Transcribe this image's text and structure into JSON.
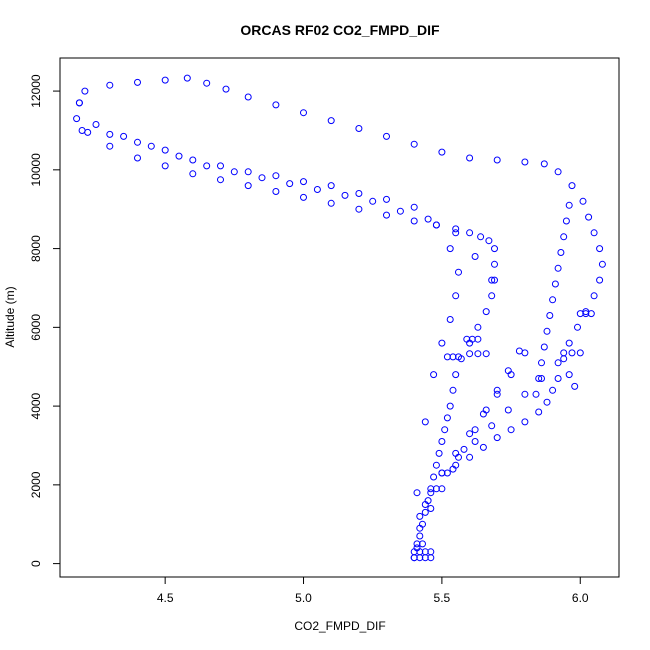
{
  "chart_data": {
    "type": "scatter",
    "title": "ORCAS RF02 CO2_FMPD_DIF",
    "xlabel": "CO2_FMPD_DIF",
    "ylabel": "Altitude (m)",
    "xlim": [
      4.12,
      6.14
    ],
    "ylim": [
      -340,
      12840
    ],
    "xticks": [
      4.5,
      5.0,
      5.5,
      6.0
    ],
    "xtick_labels": [
      "4.5",
      "5.0",
      "5.5",
      "6.0"
    ],
    "yticks": [
      0,
      2000,
      4000,
      6000,
      8000,
      10000,
      12000
    ],
    "ytick_labels": [
      "0",
      "2000",
      "4000",
      "6000",
      "8000",
      "10000",
      "12000"
    ],
    "marker": "open-circle",
    "color": "#0000ff",
    "grid": false,
    "series": [
      {
        "x": [
          5.4,
          5.41,
          5.42,
          5.43,
          5.44,
          5.45,
          5.46,
          5.47,
          5.48,
          5.49,
          5.5,
          5.51,
          5.52,
          5.53,
          5.54,
          5.55,
          5.57,
          5.6,
          5.63,
          5.66,
          5.68,
          5.69,
          5.69,
          5.69,
          5.67,
          5.64,
          5.6,
          5.55,
          5.48,
          5.4,
          5.3,
          5.2,
          5.1,
          5.0,
          4.9,
          4.8,
          4.7,
          4.6,
          4.5,
          4.4,
          4.3,
          4.22,
          4.18,
          4.19,
          4.21
        ],
        "y": [
          150,
          400,
          700,
          1000,
          1300,
          1600,
          1900,
          2200,
          2500,
          2800,
          3100,
          3400,
          3700,
          4000,
          4400,
          4800,
          5200,
          5600,
          6000,
          6400,
          6800,
          7200,
          7600,
          8000,
          8200,
          8300,
          8400,
          8500,
          8600,
          8700,
          8850,
          9000,
          9150,
          9300,
          9450,
          9600,
          9750,
          9900,
          10100,
          10300,
          10600,
          10950,
          11300,
          11700,
          12000
        ]
      },
      {
        "x": [
          4.19,
          4.25,
          4.35,
          4.45,
          4.55,
          4.65,
          4.75,
          4.85,
          4.95,
          5.05,
          5.15,
          5.25,
          5.35,
          5.45,
          5.55,
          5.62,
          5.68
        ],
        "y": [
          11700,
          11150,
          10850,
          10600,
          10350,
          10100,
          9950,
          9800,
          9650,
          9500,
          9350,
          9200,
          8950,
          8750,
          8400,
          7800,
          7200
        ]
      },
      {
        "x": [
          4.2,
          4.3,
          4.4,
          4.5,
          4.6,
          4.7,
          4.8,
          4.9,
          5.0,
          5.1,
          5.2,
          5.3,
          5.4,
          5.48,
          5.53,
          5.56,
          5.55,
          5.53,
          5.5,
          5.47,
          5.44,
          5.41
        ],
        "y": [
          11000,
          10900,
          10700,
          10500,
          10250,
          10100,
          9950,
          9850,
          9700,
          9600,
          9400,
          9250,
          9050,
          8600,
          8000,
          7400,
          6800,
          6200,
          5600,
          4800,
          3600,
          1800
        ]
      },
      {
        "x": [
          4.3,
          4.4,
          4.5,
          4.58,
          4.65,
          4.72,
          4.8,
          4.9,
          5.0,
          5.1,
          5.2,
          5.3,
          5.4,
          5.5,
          5.6,
          5.7,
          5.8,
          5.87,
          5.92,
          5.97,
          6.01,
          6.03,
          6.05,
          6.07,
          6.08,
          6.07,
          6.05,
          6.02,
          5.99,
          5.96,
          5.94,
          5.96,
          5.98
        ],
        "y": [
          12150,
          12220,
          12280,
          12330,
          12200,
          12050,
          11850,
          11650,
          11450,
          11250,
          11050,
          10850,
          10650,
          10450,
          10300,
          10250,
          10200,
          10150,
          9950,
          9600,
          9200,
          8800,
          8400,
          8000,
          7600,
          7200,
          6800,
          6400,
          6000,
          5600,
          5200,
          4800,
          4500
        ]
      },
      {
        "x": [
          5.96,
          5.95,
          5.94,
          5.93,
          5.92,
          5.91,
          5.9,
          5.89,
          5.88,
          5.87,
          5.86,
          5.85,
          5.84
        ],
        "y": [
          9100,
          8700,
          8300,
          7900,
          7500,
          7100,
          6700,
          6300,
          5900,
          5500,
          5100,
          4700,
          4300
        ]
      },
      {
        "x": [
          5.94,
          5.97,
          6.0
        ],
        "y": [
          5350,
          5350,
          5350
        ]
      },
      {
        "x": [
          6.0,
          6.02,
          6.04
        ],
        "y": [
          6350,
          6350,
          6350
        ]
      },
      {
        "x": [
          5.6,
          5.63,
          5.66
        ],
        "y": [
          5330,
          5330,
          5330
        ]
      },
      {
        "x": [
          5.52,
          5.54,
          5.56
        ],
        "y": [
          5250,
          5250,
          5250
        ]
      },
      {
        "x": [
          5.59,
          5.61,
          5.63
        ],
        "y": [
          5700,
          5700,
          5700
        ]
      },
      {
        "x": [
          5.42,
          5.46,
          5.5,
          5.55,
          5.6,
          5.65,
          5.7,
          5.75,
          5.8
        ],
        "y": [
          1200,
          1800,
          2300,
          2800,
          3300,
          3800,
          4300,
          4800,
          5350
        ]
      },
      {
        "x": [
          5.42,
          5.46,
          5.5,
          5.54,
          5.58,
          5.62,
          5.66,
          5.7,
          5.74,
          5.78
        ],
        "y": [
          900,
          1400,
          1900,
          2400,
          2900,
          3400,
          3900,
          4400,
          4900,
          5400
        ]
      },
      {
        "x": [
          5.5,
          5.55,
          5.6,
          5.65,
          5.7,
          5.75,
          5.8,
          5.85,
          5.88,
          5.9,
          5.92
        ],
        "y": [
          2300,
          2500,
          2700,
          2950,
          3200,
          3400,
          3600,
          3850,
          4100,
          4400,
          4700
        ]
      },
      {
        "x": [
          5.44,
          5.48,
          5.52,
          5.56,
          5.62,
          5.68,
          5.74,
          5.8,
          5.86,
          5.92
        ],
        "y": [
          1500,
          1900,
          2300,
          2700,
          3100,
          3500,
          3900,
          4300,
          4700,
          5100
        ]
      },
      {
        "x": [
          5.4,
          5.42,
          5.44,
          5.46,
          5.4,
          5.42,
          5.44,
          5.46,
          5.41,
          5.43
        ],
        "y": [
          150,
          150,
          150,
          150,
          300,
          300,
          300,
          300,
          500,
          500
        ]
      }
    ]
  }
}
